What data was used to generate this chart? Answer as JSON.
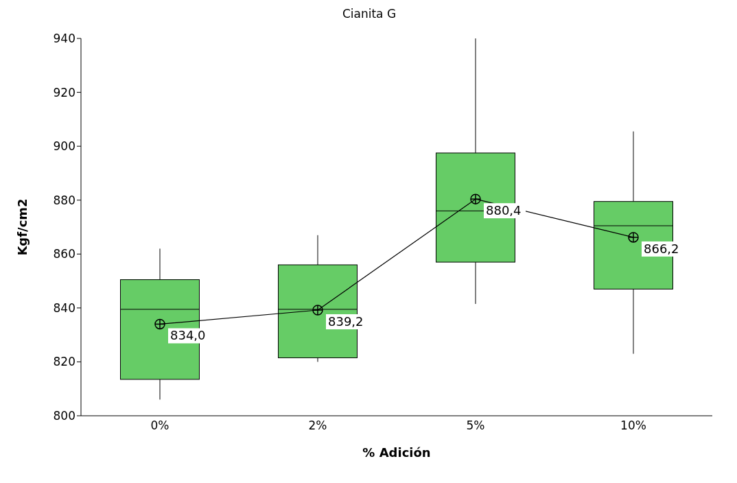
{
  "chart_data": {
    "type": "box",
    "title": "Cianita G",
    "xlabel": "% Adición",
    "ylabel": "Kgf/cm2",
    "categories": [
      "0%",
      "2%",
      "5%",
      "10%"
    ],
    "ylim": [
      800,
      940
    ],
    "yticks": [
      800,
      820,
      840,
      860,
      880,
      900,
      920,
      940
    ],
    "grid": false,
    "legend": false,
    "series": [
      {
        "color": "#66cc66",
        "boxes": [
          {
            "low": 806,
            "q1": 813.5,
            "median": 839.5,
            "q3": 850.5,
            "high": 862
          },
          {
            "low": 820,
            "q1": 821.5,
            "median": 839.5,
            "q3": 856,
            "high": 867
          },
          {
            "low": 841.5,
            "q1": 857,
            "median": 876,
            "q3": 897.5,
            "high": 940
          },
          {
            "low": 823,
            "q1": 847,
            "median": 870.5,
            "q3": 879.5,
            "high": 905.5
          }
        ]
      },
      {
        "type": "line",
        "color": "#000000",
        "marker": "circle",
        "values": [
          834.0,
          839.2,
          880.4,
          866.2
        ],
        "value_labels": [
          "834,0",
          "839,2",
          "880,4",
          "866,2"
        ]
      }
    ]
  }
}
